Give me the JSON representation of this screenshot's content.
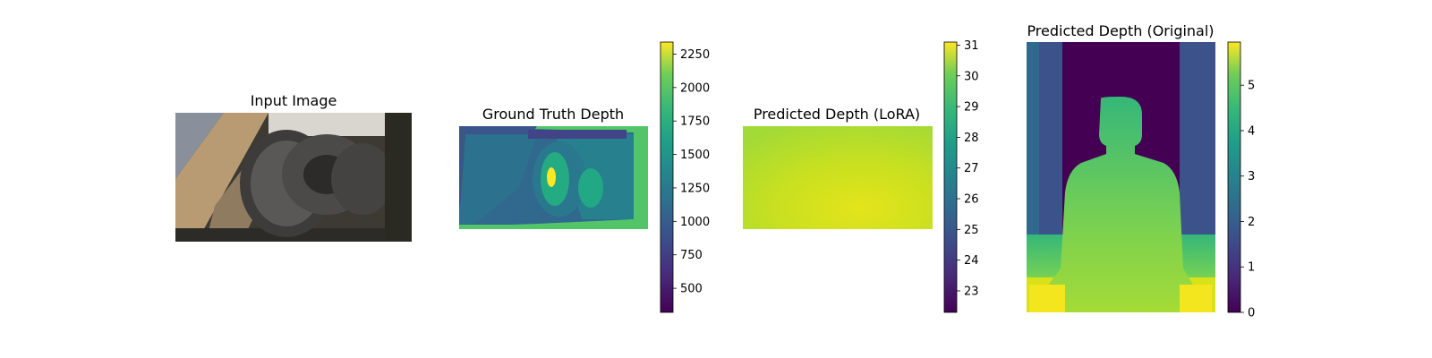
{
  "figure": {
    "panels": [
      {
        "title": "Input Image"
      },
      {
        "title": "Ground Truth Depth"
      },
      {
        "title": "Predicted Depth (LoRA)"
      },
      {
        "title": "Predicted Depth (Original)"
      }
    ]
  },
  "chart_data": [
    {
      "type": "image",
      "title": "Input Image",
      "content": "photo of stacked tires"
    },
    {
      "type": "heatmap",
      "title": "Ground Truth Depth",
      "colormap": "viridis",
      "colorbar": {
        "range": [
          320,
          2340
        ],
        "ticks": [
          500,
          750,
          1000,
          1250,
          1500,
          1750,
          2000,
          2250
        ]
      }
    },
    {
      "type": "heatmap",
      "title": "Predicted Depth (LoRA)",
      "colormap": "viridis",
      "colorbar": {
        "range": [
          22.3,
          31.1
        ],
        "ticks": [
          23,
          24,
          25,
          26,
          27,
          28,
          29,
          30,
          31
        ]
      }
    },
    {
      "type": "heatmap",
      "title": "Predicted Depth (Original)",
      "colormap": "viridis",
      "colorbar": {
        "range": [
          0,
          5.95
        ],
        "ticks": [
          0,
          1,
          2,
          3,
          4,
          5
        ]
      }
    }
  ],
  "colors": {
    "viridis_bottom": "#440154",
    "viridis_mid": "#21918c",
    "viridis_top": "#fde725"
  }
}
